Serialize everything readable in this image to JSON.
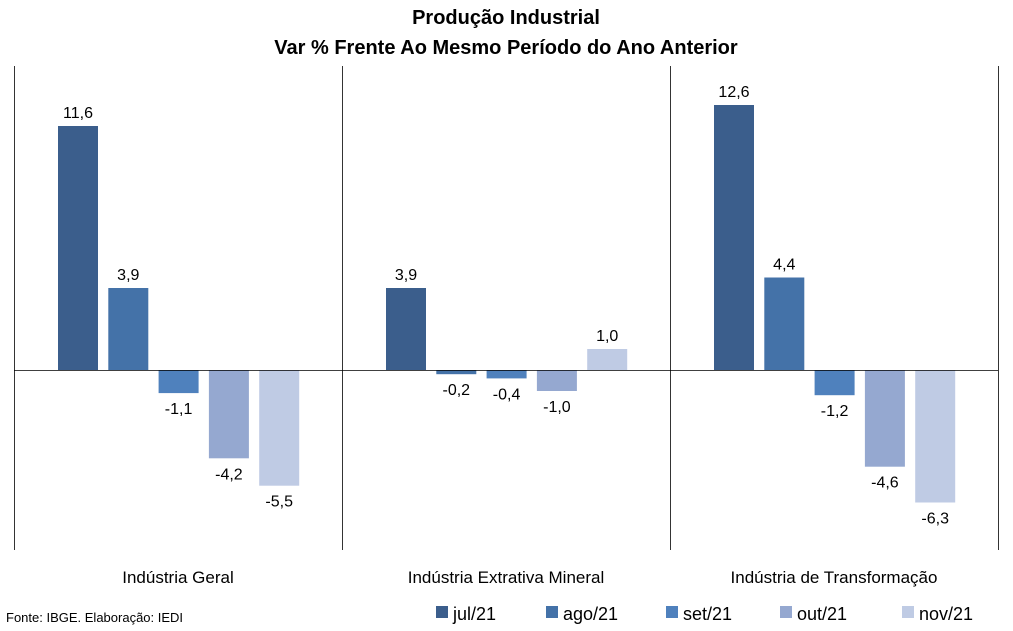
{
  "chart_data": {
    "type": "bar",
    "title": "Produção Industrial",
    "subtitle": "Var % Frente Ao Mesmo Período do Ano Anterior",
    "categories": [
      "Indústria Geral",
      "Indústria Extrativa Mineral",
      "Indústria de Transformação"
    ],
    "series": [
      {
        "name": "jul/21",
        "color": "#3b5e8c",
        "values": [
          11.6,
          3.9,
          12.6
        ],
        "labels": [
          "11,6",
          "3,9",
          "12,6"
        ]
      },
      {
        "name": "ago/21",
        "color": "#4472a8",
        "values": [
          3.9,
          -0.2,
          4.4
        ],
        "labels": [
          "3,9",
          "-0,2",
          "4,4"
        ]
      },
      {
        "name": "set/21",
        "color": "#4f81bd",
        "values": [
          -1.1,
          -0.4,
          -1.2
        ],
        "labels": [
          "-1,1",
          "-0,4",
          "-1,2"
        ]
      },
      {
        "name": "out/21",
        "color": "#95a8d0",
        "values": [
          -4.2,
          -1.0,
          -4.6
        ],
        "labels": [
          "-4,2",
          "-1,0",
          "-4,6"
        ]
      },
      {
        "name": "nov/21",
        "color": "#bfcbe4",
        "values": [
          -5.5,
          1.0,
          -6.3
        ],
        "labels": [
          "-5,5",
          "1,0",
          "-6,3"
        ]
      }
    ],
    "ylim": [
      -8.3,
      13.8
    ],
    "grid": false,
    "legend_position": "bottom-right",
    "source": "Fonte: IBGE. Elaboração: IEDI"
  }
}
